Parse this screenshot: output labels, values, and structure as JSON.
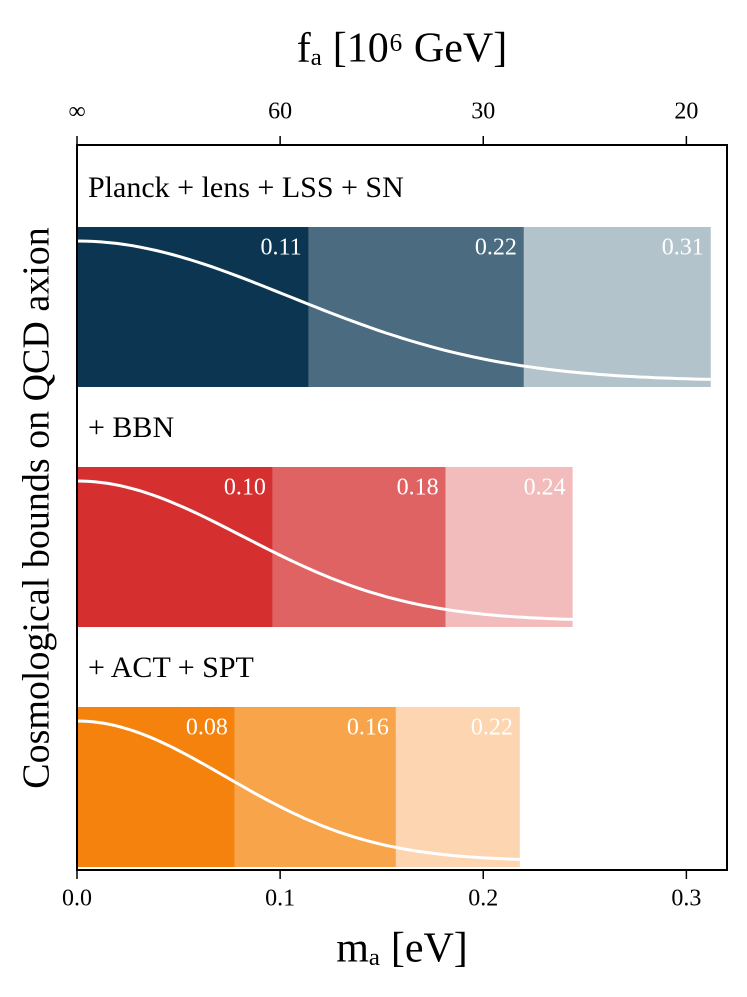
{
  "chart_data": {
    "type": "bar",
    "orientation": "horizontal",
    "xlabel": "mₐ [eV]",
    "x2label": "fₐ [10⁶ GeV]",
    "ylabel": "Cosmological bounds on QCD axion",
    "xlim": [
      0,
      0.32
    ],
    "xticks": [
      {
        "value": 0,
        "label": "0.0"
      },
      0.1,
      0.2,
      0.3
    ],
    "x2ticks": [
      {
        "value": null,
        "label": "∞"
      },
      60,
      30,
      20
    ],
    "series": [
      {
        "name": "Planck + lens + LSS + SN",
        "colors": [
          "#0b3550",
          "#4a6b80",
          "#b3c3cb"
        ],
        "values": [
          0.114,
          0.22,
          0.312
        ],
        "value_labels": [
          "0.11",
          "0.22",
          "0.31"
        ]
      },
      {
        "name": "+ BBN",
        "colors": [
          "#d62f2f",
          "#e06363",
          "#f2bcbc"
        ],
        "values": [
          0.0964,
          0.1815,
          0.244
        ],
        "value_labels": [
          "0.10",
          "0.18",
          "0.24"
        ]
      },
      {
        "name": "+ ACT + SPT",
        "colors": [
          "#f5820d",
          "#f7a44a",
          "#fdd5b0"
        ],
        "values": [
          0.0777,
          0.157,
          0.218
        ],
        "value_labels": [
          "0.08",
          "0.16",
          "0.22"
        ]
      }
    ]
  }
}
